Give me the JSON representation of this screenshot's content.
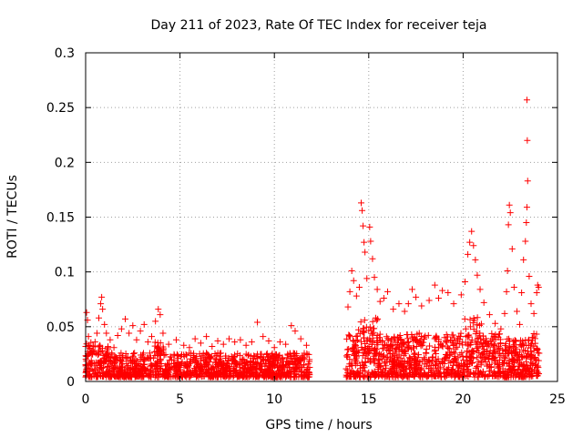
{
  "chart_data": {
    "type": "scatter",
    "title": "Day 211 of 2023, Rate Of TEC Index for receiver teja",
    "xlabel": "GPS time / hours",
    "ylabel": "ROTI / TECUs",
    "xlim": [
      0,
      25
    ],
    "ylim": [
      0,
      0.3
    ],
    "xticks": [
      0,
      5,
      10,
      15,
      20,
      25
    ],
    "xtick_labels": [
      "0",
      "5",
      "10",
      "15",
      "20",
      "25"
    ],
    "yticks": [
      0,
      0.05,
      0.1,
      0.15,
      0.2,
      0.25,
      0.3
    ],
    "ytick_labels": [
      "0",
      "0.05",
      "0.1",
      "0.15",
      "0.2",
      "0.25",
      "0.3"
    ],
    "grid": true,
    "marker": "+",
    "marker_color": "#ff0000",
    "series": [
      {
        "name": "ROTI",
        "points": [
          [
            0.05,
            0.063
          ],
          [
            0.1,
            0.056
          ],
          [
            0.15,
            0.041
          ],
          [
            0.2,
            0.032
          ],
          [
            0.3,
            0.025
          ],
          [
            0.4,
            0.028
          ],
          [
            0.5,
            0.036
          ],
          [
            0.6,
            0.044
          ],
          [
            0.7,
            0.058
          ],
          [
            0.8,
            0.071
          ],
          [
            0.85,
            0.077
          ],
          [
            0.9,
            0.066
          ],
          [
            1.0,
            0.052
          ],
          [
            1.1,
            0.044
          ],
          [
            1.3,
            0.038
          ],
          [
            1.5,
            0.031
          ],
          [
            1.7,
            0.042
          ],
          [
            1.9,
            0.048
          ],
          [
            2.1,
            0.057
          ],
          [
            2.3,
            0.044
          ],
          [
            2.5,
            0.051
          ],
          [
            2.7,
            0.038
          ],
          [
            2.9,
            0.046
          ],
          [
            3.1,
            0.052
          ],
          [
            3.3,
            0.036
          ],
          [
            3.5,
            0.041
          ],
          [
            3.7,
            0.055
          ],
          [
            3.85,
            0.066
          ],
          [
            3.95,
            0.061
          ],
          [
            4.1,
            0.044
          ],
          [
            4.4,
            0.034
          ],
          [
            4.8,
            0.038
          ],
          [
            5.2,
            0.033
          ],
          [
            5.5,
            0.031
          ],
          [
            5.8,
            0.039
          ],
          [
            6.1,
            0.035
          ],
          [
            6.4,
            0.041
          ],
          [
            6.7,
            0.032
          ],
          [
            7.0,
            0.037
          ],
          [
            7.3,
            0.034
          ],
          [
            7.6,
            0.039
          ],
          [
            7.9,
            0.036
          ],
          [
            8.2,
            0.038
          ],
          [
            8.5,
            0.033
          ],
          [
            8.8,
            0.036
          ],
          [
            9.1,
            0.054
          ],
          [
            9.4,
            0.041
          ],
          [
            9.7,
            0.037
          ],
          [
            10.0,
            0.031
          ],
          [
            10.3,
            0.036
          ],
          [
            10.6,
            0.034
          ],
          [
            10.9,
            0.051
          ],
          [
            11.1,
            0.046
          ],
          [
            11.4,
            0.039
          ],
          [
            11.7,
            0.033
          ],
          [
            13.9,
            0.068
          ],
          [
            14.0,
            0.082
          ],
          [
            14.1,
            0.101
          ],
          [
            14.2,
            0.092
          ],
          [
            14.35,
            0.078
          ],
          [
            14.5,
            0.086
          ],
          [
            14.6,
            0.163
          ],
          [
            14.65,
            0.156
          ],
          [
            14.7,
            0.142
          ],
          [
            14.75,
            0.127
          ],
          [
            14.8,
            0.118
          ],
          [
            14.9,
            0.094
          ],
          [
            15.05,
            0.141
          ],
          [
            15.1,
            0.128
          ],
          [
            15.2,
            0.112
          ],
          [
            15.3,
            0.095
          ],
          [
            15.45,
            0.084
          ],
          [
            15.6,
            0.073
          ],
          [
            15.8,
            0.076
          ],
          [
            16.0,
            0.082
          ],
          [
            16.3,
            0.066
          ],
          [
            16.6,
            0.071
          ],
          [
            16.9,
            0.064
          ],
          [
            17.1,
            0.071
          ],
          [
            17.3,
            0.084
          ],
          [
            17.5,
            0.077
          ],
          [
            17.8,
            0.069
          ],
          [
            18.2,
            0.074
          ],
          [
            18.5,
            0.088
          ],
          [
            18.7,
            0.076
          ],
          [
            18.9,
            0.083
          ],
          [
            19.2,
            0.081
          ],
          [
            19.5,
            0.071
          ],
          [
            19.9,
            0.079
          ],
          [
            20.1,
            0.091
          ],
          [
            20.25,
            0.116
          ],
          [
            20.35,
            0.127
          ],
          [
            20.45,
            0.137
          ],
          [
            20.55,
            0.124
          ],
          [
            20.65,
            0.111
          ],
          [
            20.75,
            0.097
          ],
          [
            20.9,
            0.084
          ],
          [
            21.1,
            0.072
          ],
          [
            21.4,
            0.061
          ],
          [
            21.7,
            0.053
          ],
          [
            22.0,
            0.048
          ],
          [
            22.2,
            0.062
          ],
          [
            22.3,
            0.082
          ],
          [
            22.35,
            0.101
          ],
          [
            22.4,
            0.143
          ],
          [
            22.45,
            0.161
          ],
          [
            22.5,
            0.154
          ],
          [
            22.6,
            0.121
          ],
          [
            22.7,
            0.086
          ],
          [
            22.85,
            0.064
          ],
          [
            23.0,
            0.052
          ],
          [
            23.1,
            0.081
          ],
          [
            23.2,
            0.111
          ],
          [
            23.3,
            0.128
          ],
          [
            23.35,
            0.145
          ],
          [
            23.38,
            0.159
          ],
          [
            23.42,
            0.183
          ],
          [
            23.4,
            0.22
          ],
          [
            23.38,
            0.257
          ],
          [
            23.5,
            0.096
          ],
          [
            23.6,
            0.071
          ],
          [
            23.75,
            0.062
          ],
          [
            23.9,
            0.081
          ],
          [
            23.95,
            0.088
          ],
          [
            24.0,
            0.086
          ]
        ]
      }
    ]
  }
}
